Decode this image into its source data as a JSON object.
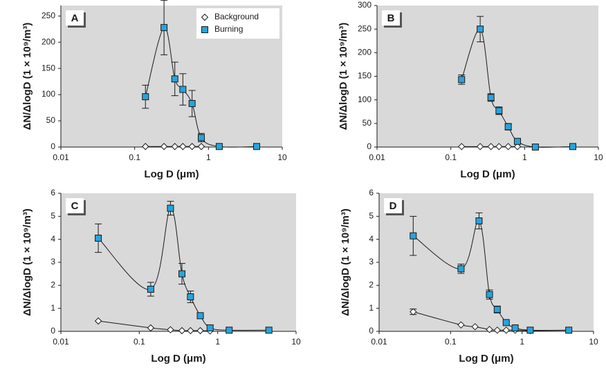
{
  "chart_data": [
    {
      "type": "line",
      "panel_label": "A",
      "xlabel": "Log D (μm)",
      "ylabel": "ΔN/ΔlogD (1 × 10⁹/m³)",
      "xscale": "log",
      "xlim": [
        0.01,
        10
      ],
      "xticks": [
        0.01,
        0.1,
        1,
        10
      ],
      "ylim": [
        0,
        270
      ],
      "yticks": [
        0,
        50,
        100,
        150,
        200,
        250
      ],
      "legend": "upper right",
      "series": [
        {
          "name": "Background",
          "color": "#ffffff",
          "marker": "diamond",
          "x": [
            0.14,
            0.25,
            0.35,
            0.45,
            0.6,
            0.8
          ],
          "values": [
            1,
            1,
            1,
            1,
            1,
            1
          ],
          "errors": [
            null,
            null,
            null,
            null,
            null,
            null
          ]
        },
        {
          "name": "Burning",
          "color": "#29a3dc",
          "marker": "square",
          "x": [
            0.14,
            0.25,
            0.35,
            0.45,
            0.6,
            0.8,
            1.4,
            4.5
          ],
          "values": [
            96,
            228,
            130,
            110,
            83,
            18,
            1,
            1
          ],
          "errors": [
            22,
            52,
            32,
            30,
            25,
            8,
            null,
            null
          ]
        }
      ]
    },
    {
      "type": "line",
      "panel_label": "B",
      "xlabel": "Log D (μm)",
      "ylabel": "ΔN/ΔlogD (1 × 10⁹/m³)",
      "xscale": "log",
      "xlim": [
        0.01,
        10
      ],
      "xticks": [
        0.01,
        0.1,
        1,
        10
      ],
      "ylim": [
        0,
        300
      ],
      "yticks": [
        0,
        50,
        100,
        150,
        200,
        250,
        300
      ],
      "series": [
        {
          "color": "#ffffff",
          "marker": "diamond",
          "x": [
            0.14,
            0.25,
            0.35,
            0.45,
            0.6,
            0.8
          ],
          "values": [
            1,
            1,
            1,
            1,
            1,
            1
          ],
          "errors": [
            null,
            null,
            null,
            null,
            null,
            null
          ]
        },
        {
          "color": "#29a3dc",
          "marker": "square",
          "x": [
            0.14,
            0.25,
            0.35,
            0.45,
            0.6,
            0.8,
            1.4,
            4.5
          ],
          "values": [
            143,
            250,
            105,
            77,
            43,
            12,
            0,
            1
          ],
          "errors": [
            10,
            27,
            8,
            8,
            7,
            6,
            5,
            null
          ]
        }
      ]
    },
    {
      "type": "line",
      "panel_label": "C",
      "xlabel": "Log D (μm)",
      "ylabel": "ΔN/ΔlogD (1 × 10⁹/m³)",
      "xscale": "log",
      "xlim": [
        0.01,
        10
      ],
      "xticks": [
        0.01,
        0.1,
        1,
        10
      ],
      "ylim": [
        0,
        6
      ],
      "yticks": [
        0,
        1,
        2,
        3,
        4,
        5,
        6
      ],
      "series": [
        {
          "color": "#ffffff",
          "marker": "diamond",
          "x": [
            0.03,
            0.14,
            0.25,
            0.35,
            0.45,
            0.6,
            0.8
          ],
          "values": [
            0.45,
            0.15,
            0.07,
            0.03,
            0.03,
            0.03,
            0.02
          ],
          "errors": [
            null,
            null,
            null,
            null,
            null,
            null,
            null
          ]
        },
        {
          "color": "#29a3dc",
          "marker": "square",
          "x": [
            0.03,
            0.14,
            0.25,
            0.35,
            0.45,
            0.6,
            0.8,
            1.4,
            4.5
          ],
          "values": [
            4.05,
            1.83,
            5.35,
            2.5,
            1.5,
            0.68,
            0.15,
            0.05,
            0.05
          ],
          "errors": [
            0.62,
            0.3,
            0.3,
            0.45,
            0.25,
            0.12,
            null,
            null,
            null
          ]
        }
      ]
    },
    {
      "type": "line",
      "panel_label": "D",
      "xlabel": "Log D (μm)",
      "ylabel": "ΔN/ΔlogD (1 × 10⁹/m³)",
      "xscale": "log",
      "xlim": [
        0.01,
        10
      ],
      "xticks": [
        0.01,
        0.1,
        1,
        10
      ],
      "ylim": [
        0,
        6
      ],
      "yticks": [
        0,
        1,
        2,
        3,
        4,
        5,
        6
      ],
      "series": [
        {
          "color": "#ffffff",
          "marker": "diamond",
          "x": [
            0.03,
            0.14,
            0.22,
            0.35,
            0.45,
            0.6,
            0.8,
            1.3,
            4.5
          ],
          "values": [
            0.85,
            0.28,
            0.2,
            0.08,
            0.05,
            0.05,
            0.05,
            0.03,
            0.05
          ],
          "errors": [
            0.12,
            null,
            null,
            null,
            null,
            null,
            null,
            null,
            null
          ]
        },
        {
          "color": "#29a3dc",
          "marker": "square",
          "x": [
            0.03,
            0.14,
            0.25,
            0.35,
            0.45,
            0.6,
            0.8,
            1.3,
            4.5
          ],
          "values": [
            4.15,
            2.72,
            4.8,
            1.6,
            0.95,
            0.38,
            0.15,
            0.05,
            0.05
          ],
          "errors": [
            0.85,
            0.2,
            0.35,
            0.2,
            0.15,
            null,
            null,
            null,
            null
          ]
        }
      ]
    }
  ]
}
